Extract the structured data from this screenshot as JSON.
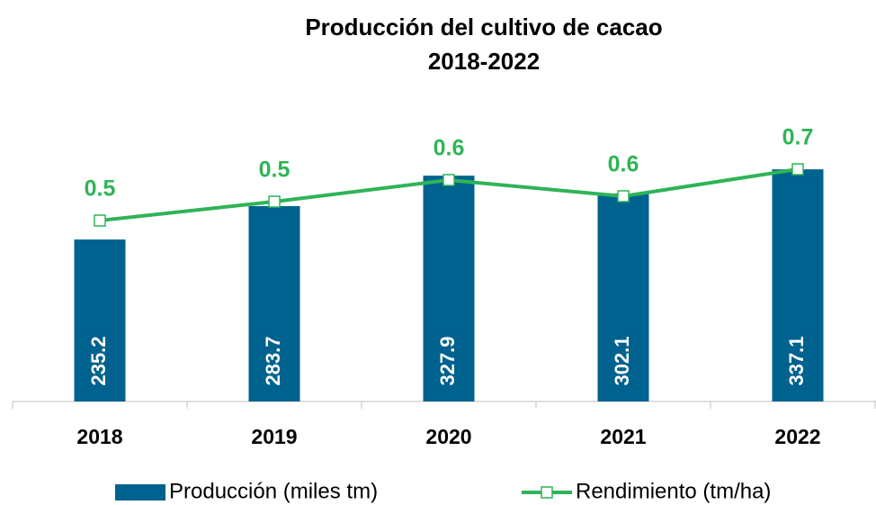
{
  "chart_data": {
    "type": "bar-line",
    "title": "Producción del cultivo de cacao",
    "subtitle": "2018-2022",
    "categories": [
      "2018",
      "2019",
      "2020",
      "2021",
      "2022"
    ],
    "series": [
      {
        "name": "Producción (miles tm)",
        "color": "#00628f",
        "type": "bar",
        "values": [
          235.2,
          283.7,
          327.9,
          302.1,
          337.1
        ]
      },
      {
        "name": "Rendimiento (tm/ha)",
        "color": "#2fb457",
        "type": "line",
        "axis": "y2",
        "values": [
          0.47,
          0.54,
          0.62,
          0.56,
          0.66
        ],
        "value_labels": [
          "0.5",
          "0.5",
          "0.6",
          "0.6",
          "0.7"
        ]
      }
    ],
    "ylim": [
      0,
      400
    ],
    "y2lim": [
      -0.2,
      0.82
    ],
    "legend": "bottom"
  }
}
